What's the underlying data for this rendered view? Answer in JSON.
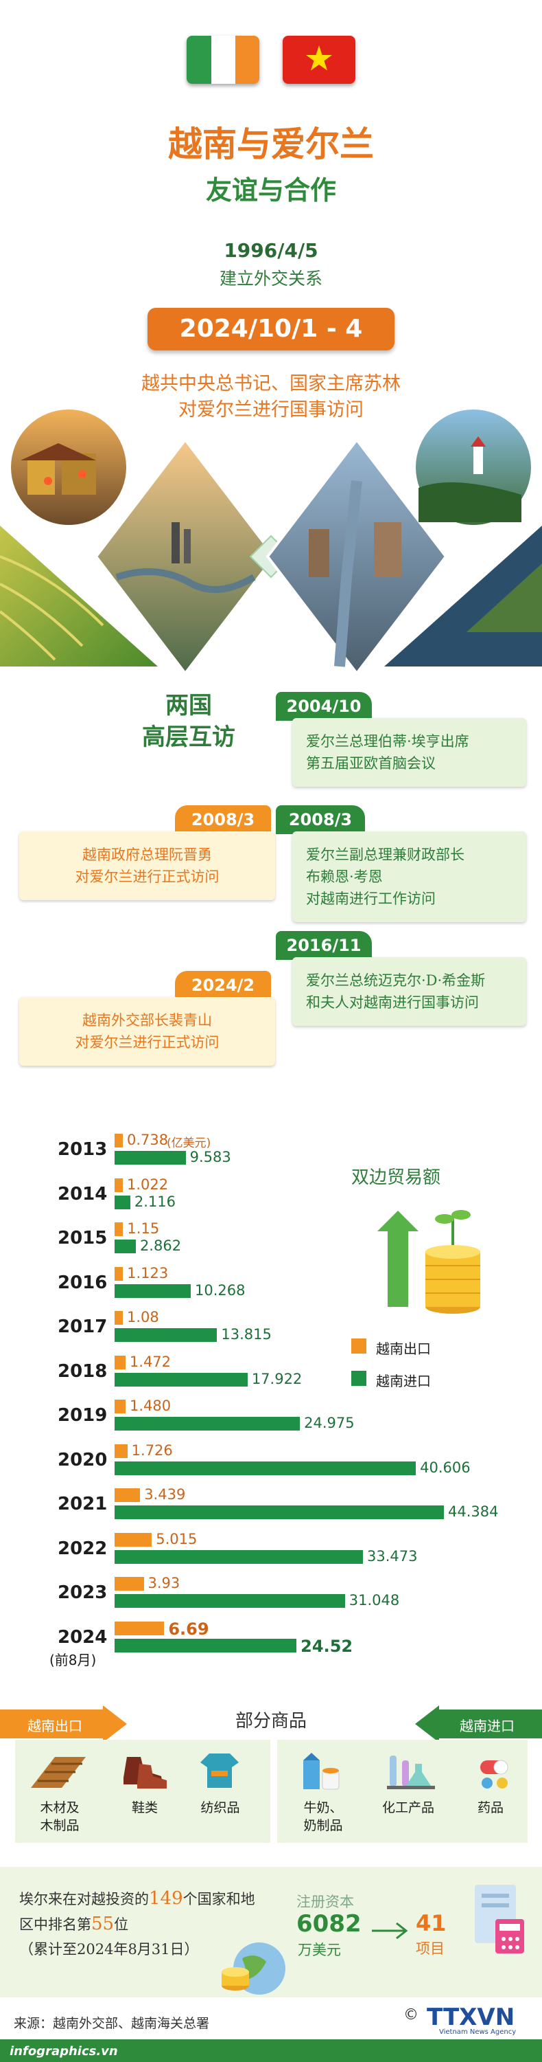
{
  "header": {
    "title": "越南与爱尔兰",
    "subtitle": "友谊与合作",
    "established_date": "1996/4/5",
    "established_label": "建立外交关系",
    "visit_date": "2024/10/1 - 4",
    "visit_line1": "越共中央总书记、国家主席苏林",
    "visit_line2": "对爱尔兰进行国事访问"
  },
  "colors": {
    "orange": "#e8761f",
    "green": "#2e8b3c",
    "light_green": "#e8f3dc",
    "light_yellow": "#fdf5d6"
  },
  "visits": {
    "title_line1": "两国",
    "title_line2": "高层互访",
    "items": [
      {
        "date": "2004/10",
        "side": "ireland",
        "lines": [
          "爱尔兰总理伯蒂·埃亨出席",
          "第五届亚欧首脑会议"
        ]
      },
      {
        "date": "2008/3",
        "side": "vietnam",
        "lines": [
          "越南政府总理阮晋勇",
          "对爱尔兰进行正式访问"
        ]
      },
      {
        "date": "2008/3",
        "side": "ireland",
        "lines": [
          "爱尔兰副总理兼财政部长",
          "布赖恩·考恩",
          "对越南进行工作访问"
        ]
      },
      {
        "date": "2016/11",
        "side": "ireland",
        "lines": [
          "爱尔兰总统迈克尔·D·希金斯",
          "和夫人对越南进行国事访问"
        ]
      },
      {
        "date": "2024/2",
        "side": "vietnam",
        "lines": [
          "越南外交部长裴青山",
          "对爱尔兰进行正式访问"
        ]
      }
    ]
  },
  "chart_data": {
    "type": "bar",
    "title": "双边贸易额",
    "unit": "(亿美元)",
    "categories": [
      "2013",
      "2014",
      "2015",
      "2016",
      "2017",
      "2018",
      "2019",
      "2020",
      "2021",
      "2022",
      "2023",
      "2024"
    ],
    "category_note_2024": "(前8月)",
    "series": [
      {
        "name": "越南出口",
        "color": "#f29222",
        "values": [
          0.738,
          1.022,
          1.15,
          1.123,
          1.08,
          1.472,
          1.48,
          1.726,
          3.439,
          5.015,
          3.93,
          6.69
        ],
        "labels": [
          "0.738",
          "1.022",
          "1.15",
          "1.123",
          "1.08",
          "1.472",
          "1.480",
          "1.726",
          "3.439",
          "5.015",
          "3.93",
          "6.69"
        ]
      },
      {
        "name": "越南进口",
        "color": "#1f9146",
        "values": [
          9.583,
          2.116,
          2.862,
          10.268,
          13.815,
          17.922,
          24.975,
          40.606,
          44.384,
          33.473,
          31.048,
          24.52
        ],
        "labels": [
          "9.583",
          "2.116",
          "2.862",
          "10.268",
          "13.815",
          "17.922",
          "24.975",
          "40.606",
          "44.384",
          "33.473",
          "31.048",
          "24.52"
        ]
      }
    ],
    "legend_position": "right"
  },
  "goods": {
    "title": "部分商品",
    "export_label": "越南出口",
    "import_label": "越南进口",
    "export_items": [
      {
        "icon": "wood-icon",
        "label": "木材及\n木制品"
      },
      {
        "icon": "shoes-icon",
        "label": "鞋类"
      },
      {
        "icon": "textile-icon",
        "label": "纺织品"
      }
    ],
    "import_items": [
      {
        "icon": "milk-icon",
        "label": "牛奶、\n奶制品"
      },
      {
        "icon": "chemicals-icon",
        "label": "化工产品"
      },
      {
        "icon": "medicine-icon",
        "label": "药品"
      }
    ]
  },
  "investment": {
    "text_pre": "埃尔来在对越投资的",
    "countries": "149",
    "text_mid": "个国家和地",
    "text_line2_pre": "区中排名第",
    "rank": "55",
    "text_line2_post": "位",
    "text_line3": "（累计至2024年8月31日）",
    "capital_label": "注册资本",
    "capital_value": "6082",
    "capital_unit": "万美元",
    "projects_value": "41",
    "projects_unit": "项目"
  },
  "footer": {
    "source": "来源：越南外交部、越南海关总署",
    "site": "infographics.vn",
    "agency": "TTXVN",
    "agency_sub": "Vietnam News Agency"
  }
}
